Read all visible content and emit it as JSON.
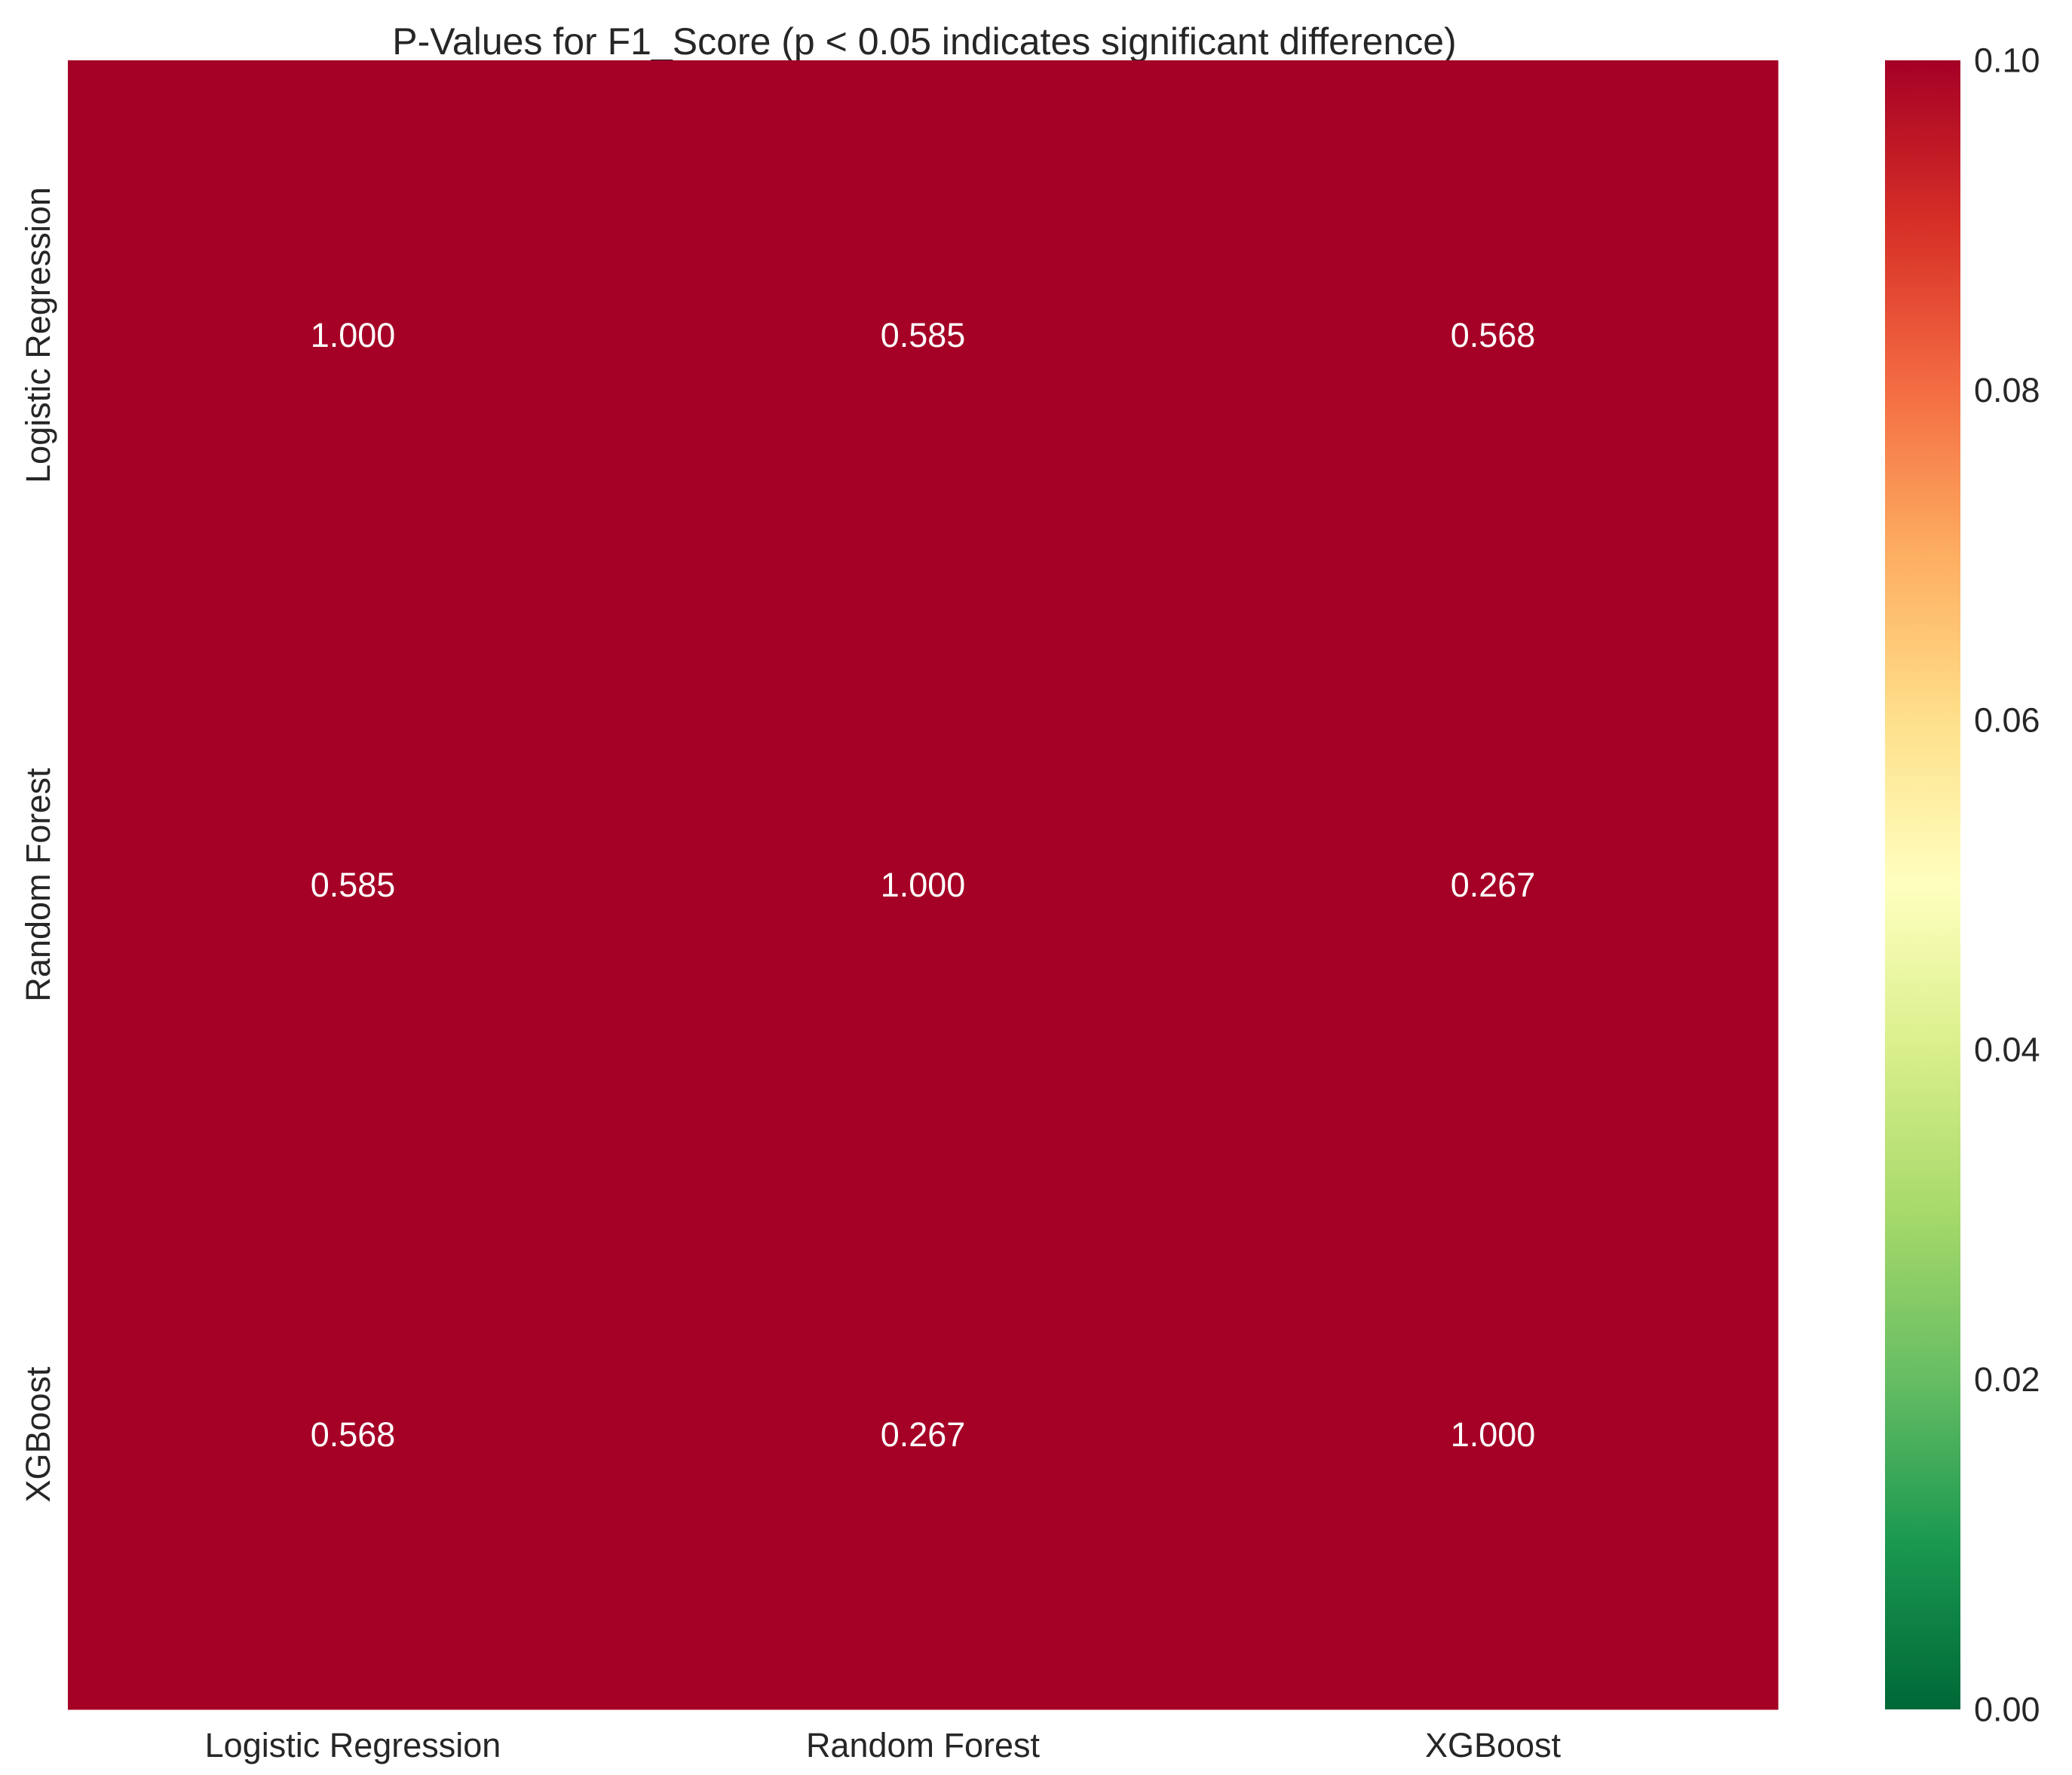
{
  "chart_data": {
    "type": "heatmap",
    "title": "P-Values for F1_Score (p < 0.05 indicates significant difference)",
    "rows": [
      "Logistic Regression",
      "Random Forest",
      "XGBoost"
    ],
    "columns": [
      "Logistic Regression",
      "Random Forest",
      "XGBoost"
    ],
    "values": [
      [
        1.0,
        0.585,
        0.568
      ],
      [
        0.585,
        1.0,
        0.267
      ],
      [
        0.568,
        0.267,
        1.0
      ]
    ],
    "annotations": [
      [
        "1.000",
        "0.585",
        "0.568"
      ],
      [
        "0.585",
        "1.000",
        "0.267"
      ],
      [
        "0.568",
        "0.267",
        "1.000"
      ]
    ],
    "colormap": "RdYlGn_r",
    "color_range": [
      0,
      0.1
    ],
    "colorbar": {
      "ticks": [
        0.0,
        0.02,
        0.04,
        0.06,
        0.08,
        0.1
      ],
      "tick_labels": [
        "0.00",
        "0.02",
        "0.04",
        "0.06",
        "0.08",
        "0.10"
      ]
    },
    "colors": {
      "cell_fill": "#a50026",
      "annotation_text": "#ffffff"
    }
  }
}
